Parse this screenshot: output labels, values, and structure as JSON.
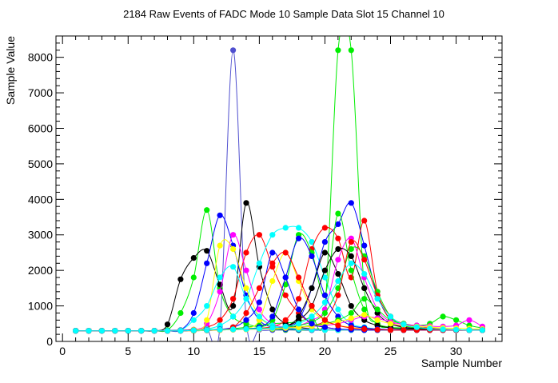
{
  "chart_data": {
    "type": "line",
    "title": "2184 Raw Events of FADC Mode 10 Sample Data Slot 15 Channel 10",
    "xlabel": "Sample Number",
    "ylabel": "Sample Value",
    "xlim": [
      -0.5,
      33.5
    ],
    "ylim": [
      0,
      8600
    ],
    "xticks": [
      0,
      5,
      10,
      15,
      20,
      25,
      30
    ],
    "yticks": [
      0,
      1000,
      2000,
      3000,
      4000,
      5000,
      6000,
      7000,
      8000
    ],
    "grid": false,
    "legend": "none",
    "x": [
      1,
      2,
      3,
      4,
      5,
      6,
      7,
      8,
      9,
      10,
      11,
      12,
      13,
      14,
      15,
      16,
      17,
      18,
      19,
      20,
      21,
      22,
      23,
      24,
      25,
      26,
      27,
      28,
      29,
      30,
      31,
      32
    ],
    "series": [
      {
        "color": "#4f4fcf",
        "values": [
          300,
          300,
          300,
          300,
          300,
          300,
          300,
          310,
          320,
          330,
          340,
          420,
          8200,
          600,
          330,
          320,
          320,
          320,
          320,
          320,
          320,
          320,
          320,
          320,
          320,
          320,
          320,
          320,
          320,
          320,
          320,
          320
        ]
      },
      {
        "color": "#00ee00",
        "values": [
          300,
          300,
          300,
          300,
          300,
          300,
          300,
          300,
          310,
          320,
          330,
          340,
          360,
          400,
          450,
          500,
          520,
          560,
          700,
          900,
          8200,
          8200,
          1500,
          500,
          400,
          380,
          360,
          350,
          340,
          330,
          320,
          320
        ]
      },
      {
        "color": "#00ee00",
        "values": [
          300,
          300,
          300,
          300,
          300,
          300,
          300,
          320,
          800,
          1800,
          3700,
          1500,
          700,
          500,
          400,
          350,
          330,
          320,
          320,
          320,
          320,
          320,
          320,
          320,
          320,
          320,
          320,
          320,
          320,
          320,
          320,
          320
        ]
      },
      {
        "color": "#000000",
        "values": [
          300,
          300,
          300,
          300,
          300,
          300,
          300,
          480,
          1750,
          2350,
          2550,
          1600,
          1000,
          3900,
          2100,
          900,
          500,
          400,
          350,
          330,
          320,
          320,
          320,
          320,
          320,
          320,
          320,
          320,
          320,
          320,
          320,
          320
        ]
      },
      {
        "color": "#0000ff",
        "values": [
          300,
          300,
          300,
          300,
          300,
          300,
          300,
          300,
          320,
          800,
          2200,
          3550,
          2700,
          1300,
          600,
          400,
          350,
          330,
          320,
          320,
          320,
          320,
          320,
          320,
          320,
          320,
          320,
          320,
          320,
          320,
          320,
          320
        ]
      },
      {
        "color": "#ff0000",
        "values": [
          300,
          300,
          300,
          300,
          300,
          300,
          300,
          300,
          310,
          330,
          400,
          600,
          1200,
          2500,
          3000,
          2100,
          1300,
          800,
          500,
          400,
          350,
          330,
          320,
          320,
          320,
          320,
          320,
          320,
          320,
          320,
          320,
          320
        ]
      },
      {
        "color": "#00ffff",
        "values": [
          300,
          300,
          300,
          300,
          300,
          300,
          300,
          300,
          310,
          320,
          350,
          450,
          700,
          1200,
          2200,
          3000,
          3200,
          3200,
          2800,
          1800,
          900,
          500,
          400,
          350,
          330,
          320,
          320,
          320,
          320,
          320,
          320,
          320
        ]
      },
      {
        "color": "#ff00ff",
        "values": [
          300,
          300,
          300,
          300,
          300,
          300,
          300,
          300,
          310,
          330,
          500,
          1400,
          3000,
          2000,
          900,
          500,
          400,
          350,
          330,
          320,
          320,
          320,
          320,
          320,
          320,
          320,
          320,
          320,
          320,
          320,
          320,
          320
        ]
      },
      {
        "color": "#ffff00",
        "values": [
          300,
          300,
          300,
          300,
          300,
          300,
          300,
          300,
          310,
          330,
          600,
          2700,
          2600,
          1500,
          700,
          450,
          380,
          350,
          330,
          320,
          320,
          320,
          320,
          320,
          320,
          320,
          320,
          320,
          320,
          320,
          320,
          320
        ]
      },
      {
        "color": "#0000ff",
        "values": [
          300,
          300,
          300,
          300,
          300,
          300,
          300,
          300,
          300,
          310,
          320,
          330,
          340,
          350,
          360,
          380,
          420,
          600,
          1500,
          2800,
          3300,
          3900,
          2700,
          1300,
          600,
          400,
          350,
          330,
          320,
          320,
          320,
          320
        ]
      },
      {
        "color": "#ff0000",
        "values": [
          300,
          300,
          300,
          300,
          300,
          300,
          300,
          300,
          300,
          310,
          320,
          330,
          340,
          350,
          370,
          420,
          600,
          1200,
          2600,
          3200,
          2900,
          1800,
          3400,
          1400,
          600,
          420,
          360,
          340,
          330,
          320,
          320,
          320
        ]
      },
      {
        "color": "#00ee00",
        "values": [
          300,
          300,
          300,
          300,
          300,
          300,
          300,
          300,
          300,
          310,
          320,
          330,
          340,
          360,
          400,
          600,
          1600,
          3000,
          2500,
          1300,
          3600,
          2000,
          900,
          500,
          400,
          360,
          340,
          330,
          320,
          320,
          320,
          320
        ]
      },
      {
        "color": "#000000",
        "values": [
          300,
          300,
          300,
          300,
          300,
          300,
          300,
          300,
          300,
          310,
          320,
          330,
          340,
          350,
          360,
          380,
          420,
          700,
          1500,
          2500,
          1900,
          1000,
          600,
          450,
          380,
          350,
          330,
          320,
          320,
          320,
          320,
          320
        ]
      },
      {
        "color": "#ff00ff",
        "values": [
          300,
          300,
          300,
          300,
          300,
          300,
          300,
          300,
          300,
          310,
          320,
          330,
          340,
          350,
          360,
          380,
          400,
          450,
          600,
          900,
          2300,
          2900,
          1800,
          900,
          550,
          420,
          380,
          350,
          330,
          320,
          320,
          320
        ]
      },
      {
        "color": "#00ee00",
        "values": [
          300,
          300,
          300,
          300,
          300,
          300,
          300,
          300,
          300,
          310,
          320,
          330,
          340,
          350,
          360,
          380,
          400,
          450,
          550,
          800,
          1500,
          2600,
          2400,
          1400,
          700,
          450,
          380,
          350,
          330,
          320,
          320,
          320
        ]
      },
      {
        "color": "#ffff00",
        "values": [
          300,
          300,
          300,
          300,
          300,
          300,
          300,
          300,
          300,
          310,
          320,
          330,
          340,
          360,
          600,
          1700,
          2500,
          1700,
          900,
          600,
          450,
          400,
          350,
          330,
          320,
          320,
          320,
          320,
          320,
          320,
          320,
          320
        ]
      },
      {
        "color": "#00ffff",
        "values": [
          300,
          300,
          300,
          300,
          300,
          300,
          300,
          300,
          310,
          600,
          1000,
          1800,
          2100,
          1200,
          700,
          450,
          380,
          350,
          330,
          320,
          320,
          320,
          320,
          320,
          320,
          320,
          320,
          320,
          320,
          320,
          320,
          320
        ]
      },
      {
        "color": "#ff0000",
        "values": [
          300,
          300,
          300,
          300,
          300,
          300,
          300,
          300,
          300,
          310,
          320,
          330,
          340,
          350,
          360,
          370,
          380,
          400,
          450,
          600,
          1300,
          2800,
          2300,
          1300,
          700,
          500,
          420,
          380,
          350,
          330,
          320,
          320
        ]
      },
      {
        "color": "#0000ff",
        "values": [
          300,
          300,
          300,
          300,
          300,
          300,
          300,
          300,
          300,
          310,
          320,
          330,
          340,
          360,
          400,
          700,
          1800,
          2900,
          2400,
          1300,
          700,
          450,
          380,
          350,
          330,
          320,
          320,
          320,
          320,
          320,
          320,
          320
        ]
      },
      {
        "color": "#000000",
        "values": [
          300,
          300,
          300,
          300,
          300,
          300,
          300,
          300,
          300,
          310,
          320,
          330,
          340,
          350,
          360,
          380,
          420,
          600,
          1000,
          2000,
          2600,
          2400,
          1500,
          800,
          500,
          400,
          360,
          340,
          330,
          320,
          320,
          320
        ]
      },
      {
        "color": "#00ee00",
        "values": [
          300,
          300,
          300,
          300,
          300,
          300,
          300,
          300,
          300,
          300,
          310,
          320,
          330,
          340,
          350,
          360,
          380,
          400,
          450,
          500,
          600,
          800,
          1200,
          900,
          600,
          500,
          450,
          500,
          700,
          600,
          450,
          380
        ]
      },
      {
        "color": "#ff00ff",
        "values": [
          300,
          300,
          300,
          300,
          300,
          300,
          300,
          300,
          300,
          300,
          310,
          320,
          330,
          340,
          350,
          360,
          380,
          400,
          420,
          450,
          500,
          600,
          700,
          650,
          550,
          480,
          450,
          430,
          420,
          450,
          600,
          420
        ]
      },
      {
        "color": "#ffff00",
        "values": [
          300,
          300,
          300,
          300,
          300,
          300,
          300,
          300,
          300,
          300,
          310,
          320,
          330,
          340,
          350,
          360,
          380,
          400,
          430,
          480,
          550,
          650,
          750,
          600,
          500,
          450,
          420,
          400,
          380,
          370,
          360,
          350
        ]
      },
      {
        "color": "#0000ff",
        "values": [
          300,
          300,
          300,
          300,
          300,
          300,
          300,
          300,
          300,
          310,
          320,
          340,
          400,
          600,
          1100,
          2500,
          1800,
          900,
          500,
          400,
          350,
          330,
          320,
          320,
          320,
          320,
          320,
          320,
          320,
          320,
          320,
          320
        ]
      },
      {
        "color": "#ff0000",
        "values": [
          300,
          300,
          300,
          300,
          300,
          300,
          300,
          300,
          300,
          310,
          320,
          330,
          400,
          800,
          1500,
          2200,
          2500,
          1800,
          1000,
          600,
          450,
          380,
          350,
          330,
          320,
          320,
          320,
          320,
          320,
          320,
          320,
          320
        ]
      },
      {
        "color": "#00ffff",
        "values": [
          300,
          300,
          300,
          300,
          300,
          300,
          300,
          300,
          300,
          310,
          320,
          330,
          340,
          350,
          360,
          380,
          420,
          500,
          700,
          1100,
          1700,
          2200,
          1900,
          1200,
          700,
          480,
          400,
          360,
          340,
          330,
          320,
          320
        ]
      }
    ]
  }
}
